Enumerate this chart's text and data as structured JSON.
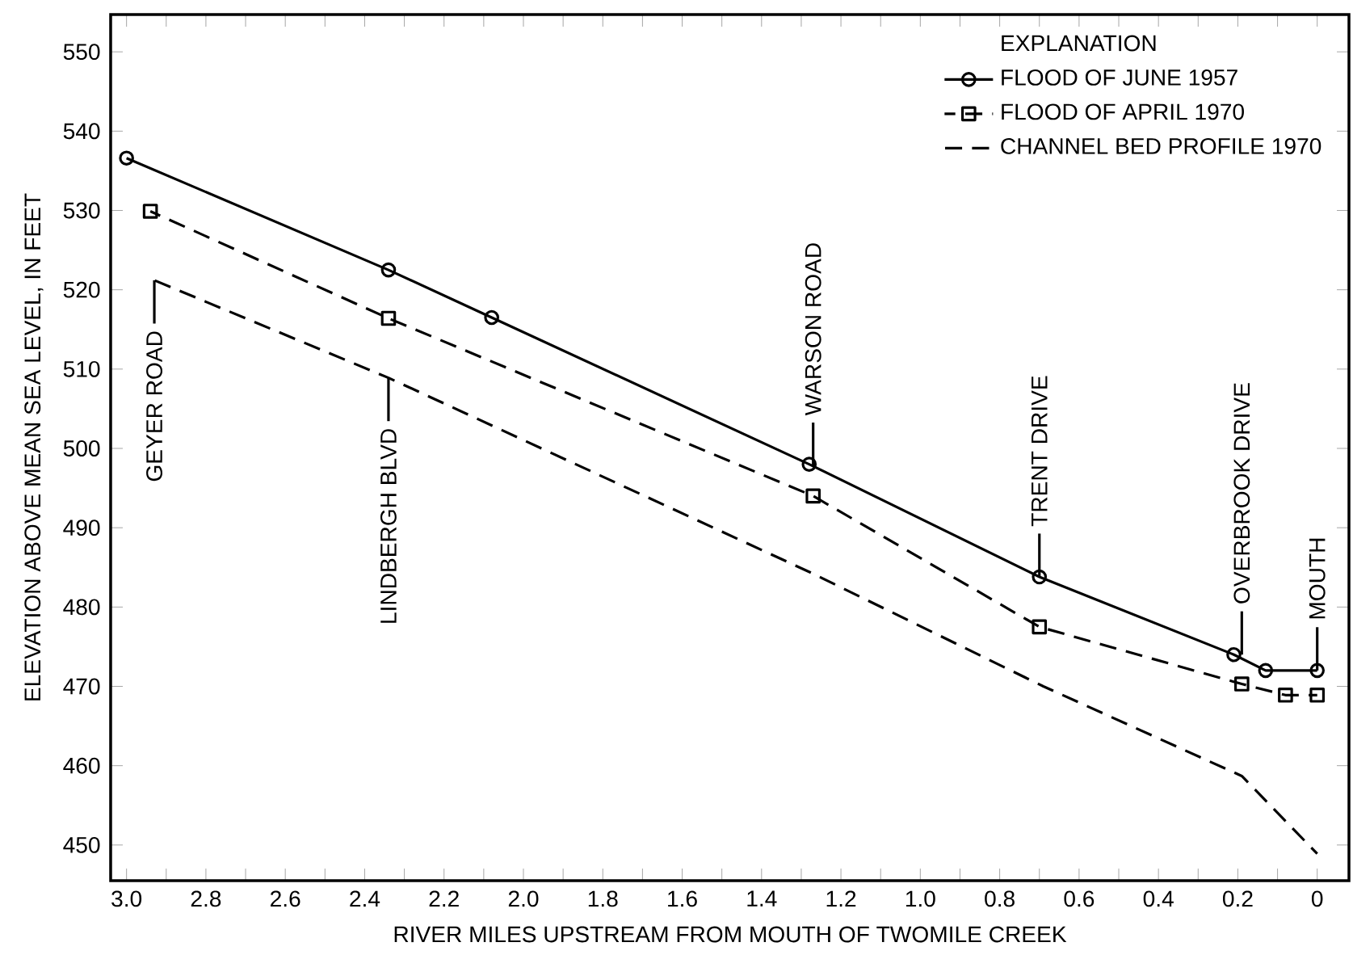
{
  "chart_data": {
    "type": "line",
    "xlabel": "RIVER MILES UPSTREAM FROM MOUTH OF TWOMILE CREEK",
    "ylabel": "ELEVATION ABOVE MEAN SEA LEVEL, IN FEET",
    "legend_title": "EXPLANATION",
    "legend": "top right",
    "xlim": [
      3.04,
      -0.08
    ],
    "ylim": [
      445.5,
      554.7
    ],
    "xticks": [
      {
        "value": 3.0,
        "label": "3.0"
      },
      {
        "value": 2.9,
        "label": null
      },
      {
        "value": 2.8,
        "label": "2.8"
      },
      {
        "value": 2.7,
        "label": null
      },
      {
        "value": 2.6,
        "label": "2.6"
      },
      {
        "value": 2.5,
        "label": null
      },
      {
        "value": 2.4,
        "label": "2.4"
      },
      {
        "value": 2.3,
        "label": null
      },
      {
        "value": 2.2,
        "label": "2.2"
      },
      {
        "value": 2.1,
        "label": null
      },
      {
        "value": 2.0,
        "label": "2.0"
      },
      {
        "value": 1.9,
        "label": null
      },
      {
        "value": 1.8,
        "label": "1.8"
      },
      {
        "value": 1.7,
        "label": null
      },
      {
        "value": 1.6,
        "label": "1.6"
      },
      {
        "value": 1.5,
        "label": null
      },
      {
        "value": 1.4,
        "label": "1.4"
      },
      {
        "value": 1.3,
        "label": null
      },
      {
        "value": 1.2,
        "label": "1.2"
      },
      {
        "value": 1.1,
        "label": null
      },
      {
        "value": 1.0,
        "label": "1.0"
      },
      {
        "value": 0.9,
        "label": null
      },
      {
        "value": 0.8,
        "label": "0.8"
      },
      {
        "value": 0.7,
        "label": null
      },
      {
        "value": 0.6,
        "label": "0.6"
      },
      {
        "value": 0.5,
        "label": null
      },
      {
        "value": 0.4,
        "label": "0.4"
      },
      {
        "value": 0.3,
        "label": null
      },
      {
        "value": 0.2,
        "label": "0.2"
      },
      {
        "value": 0.1,
        "label": null
      },
      0
    ],
    "yticks": [
      450,
      460,
      470,
      480,
      490,
      500,
      510,
      520,
      530,
      540,
      550
    ],
    "series": [
      {
        "name": "FLOOD OF JUNE 1957",
        "color": "#000000",
        "line_style": "solid",
        "marker": "circle",
        "x": [
          3.0,
          2.34,
          2.08,
          1.28,
          0.7,
          0.21,
          0.13,
          0
        ],
        "values": [
          536.6,
          522.5,
          516.5,
          498.0,
          483.8,
          474.0,
          472.0,
          472.0
        ]
      },
      {
        "name": "FLOOD OF APRIL 1970",
        "color": "#000000",
        "line_style": "dashed",
        "marker": "square",
        "x": [
          2.94,
          2.34,
          1.27,
          0.7,
          0.19,
          0.08,
          0
        ],
        "values": [
          529.9,
          516.4,
          494.0,
          477.5,
          470.3,
          468.9,
          468.9
        ]
      },
      {
        "name": "CHANNEL BED PROFILE 1970",
        "color": "#000000",
        "line_style": "dashed",
        "marker": "none",
        "x": [
          2.93,
          2.34,
          1.27,
          0.69,
          0.19,
          0
        ],
        "values": [
          521.2,
          508.9,
          484.2,
          470.0,
          458.7,
          448.9
        ]
      }
    ],
    "annotations": [
      {
        "text": "GEYER ROAD",
        "x": 2.93,
        "y": 521.2
      },
      {
        "text": "LINDBERGH BLVD",
        "x": 2.34,
        "y": 508.9
      },
      {
        "text": "WARSON ROAD",
        "x": 1.27,
        "y": 497.8
      },
      {
        "text": "TRENT DRIVE",
        "x": 0.7,
        "y": 483.8
      },
      {
        "text": "OVERBROOK DRIVE",
        "x": 0.19,
        "y": 474.0
      },
      {
        "text": "MOUTH",
        "x": 0,
        "y": 472.0
      }
    ]
  }
}
